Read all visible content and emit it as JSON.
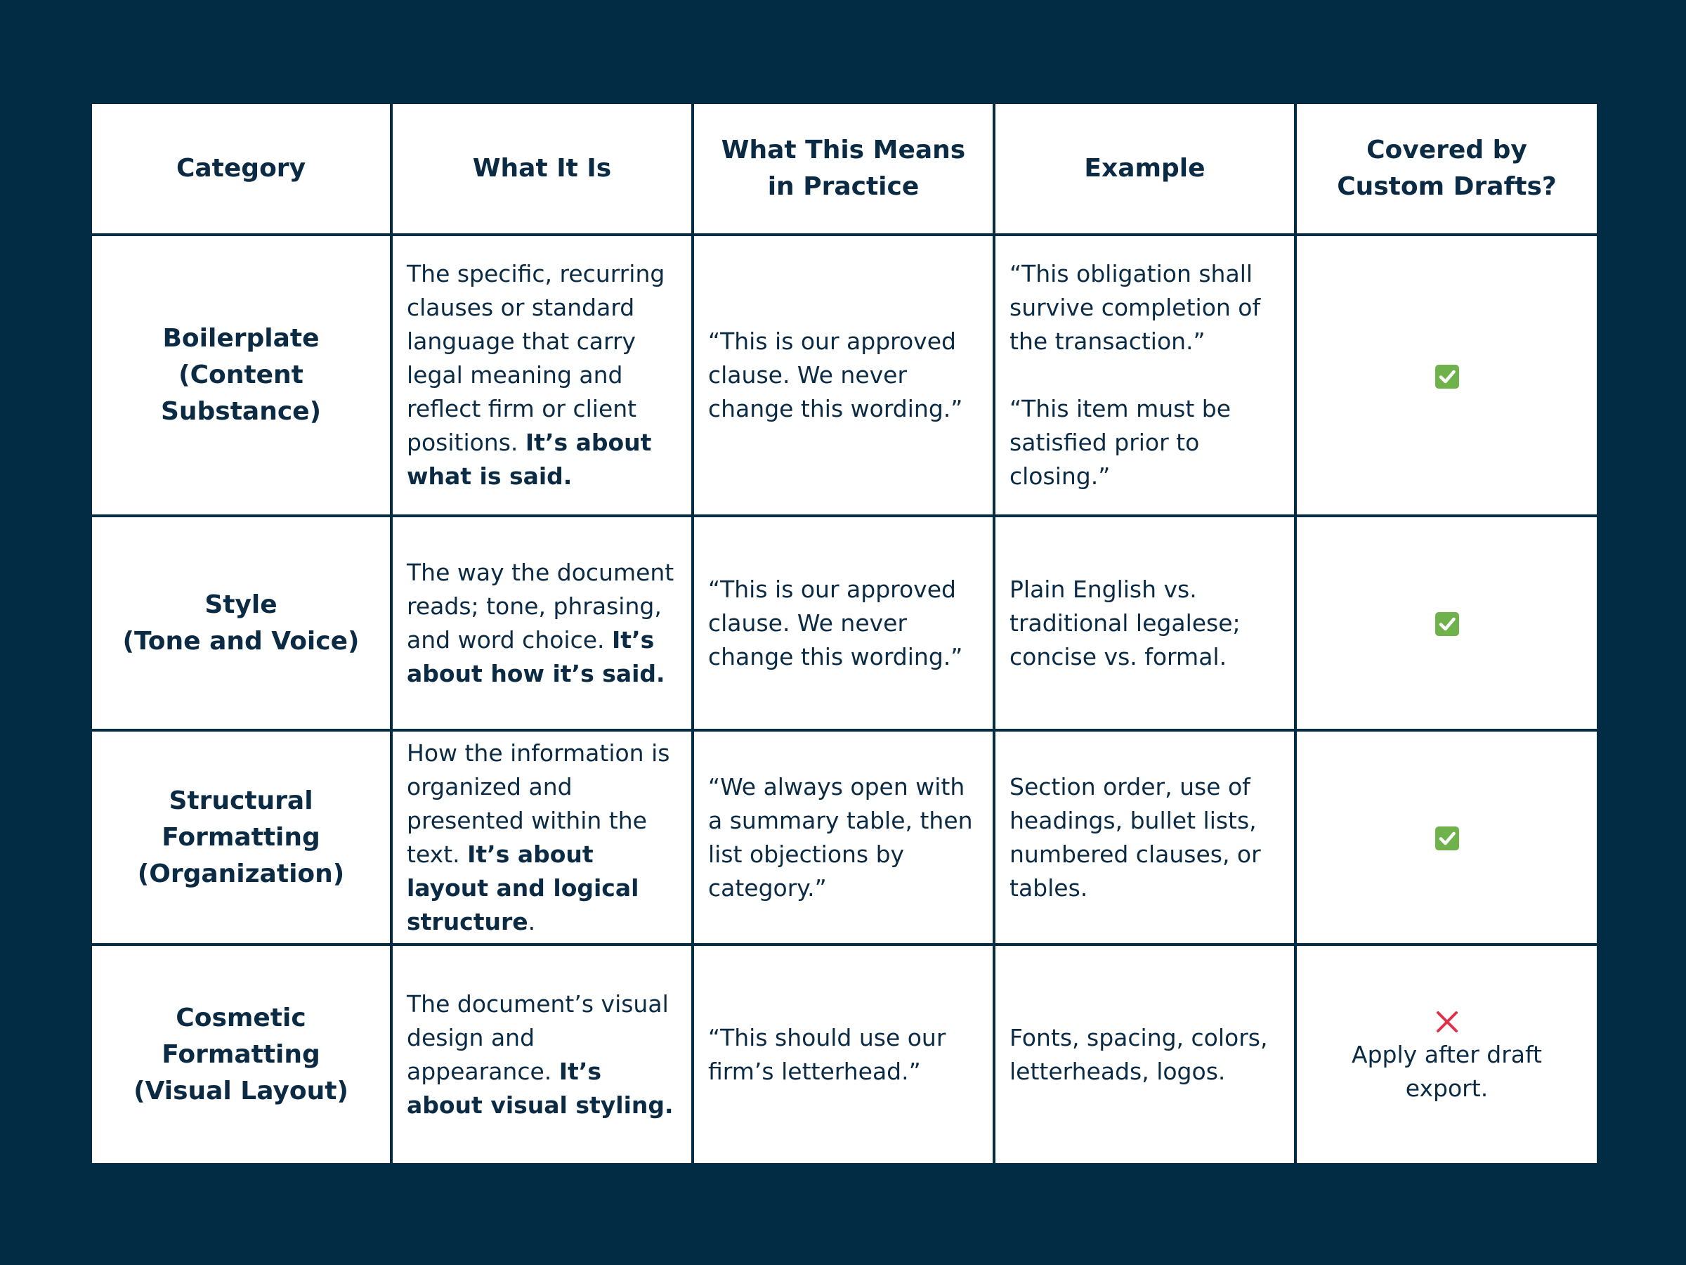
{
  "headers": [
    [
      "Category"
    ],
    [
      "What It Is"
    ],
    [
      "What This Means",
      "in Practice"
    ],
    [
      "Example"
    ],
    [
      "Covered by",
      "Custom Drafts?"
    ]
  ],
  "rows": [
    {
      "category": [
        "Boilerplate",
        "(Content",
        "Substance)"
      ],
      "what_plain": "The specific, recurring clauses or standard language that carry legal meaning and reflect firm or client positions. ",
      "what_bold": "It’s about what is said.",
      "what_tail": "",
      "practice": "“This is our approved clause. We never change this wording.”",
      "example": [
        "“This obligation shall survive completion of the transaction.”",
        "“This item must be satisfied prior to closing.”"
      ],
      "covered": true,
      "covered_note": ""
    },
    {
      "category": [
        "Style",
        "(Tone and Voice)"
      ],
      "what_plain": "The way the document reads; tone, phrasing, and word choice. ",
      "what_bold": "It’s about how it’s said.",
      "what_tail": "",
      "practice": "“This is our approved clause. We never change this wording.”",
      "example": [
        "Plain English vs. traditional legalese; concise vs. formal."
      ],
      "covered": true,
      "covered_note": ""
    },
    {
      "category": [
        "Structural",
        "Formatting",
        "(Organization)"
      ],
      "what_plain": "How the information is organized and presented within the text. ",
      "what_bold": "It’s about layout and logical structure",
      "what_tail": ".",
      "practice": "“We always open with a summary table, then list objections by category.”",
      "example": [
        "Section order, use of headings, bullet lists, numbered clauses, or tables."
      ],
      "covered": true,
      "covered_note": ""
    },
    {
      "category": [
        "Cosmetic",
        "Formatting",
        "(Visual Layout)"
      ],
      "what_plain": "The document’s visual design and appearance. ",
      "what_bold": "It’s about visual styling.",
      "what_tail": "",
      "practice": "“This should use our firm’s letterhead.”",
      "example": [
        "Fonts, spacing, colors, letterheads, logos."
      ],
      "covered": false,
      "covered_note": "Apply after draft export."
    }
  ],
  "icons": {
    "covered_yes": "check-mark-icon",
    "covered_no": "cross-mark-icon"
  },
  "colors": {
    "background": "#022c43",
    "text": "#0b2a44",
    "check": "#6fb14a",
    "cross": "#e0314b"
  }
}
